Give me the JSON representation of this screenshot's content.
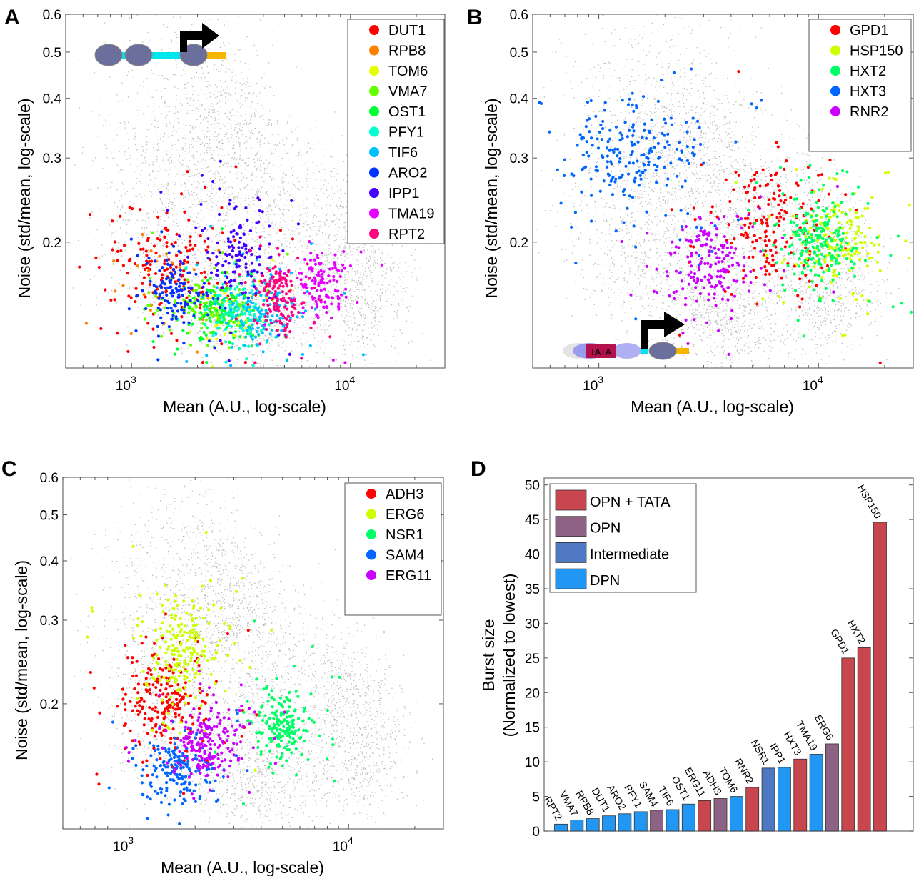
{
  "panels": {
    "A": {
      "letter": "A"
    },
    "B": {
      "letter": "B"
    },
    "C": {
      "letter": "C"
    },
    "D": {
      "letter": "D"
    }
  },
  "chart_data": [
    {
      "id": "A",
      "type": "scatter",
      "xlabel": "Mean (A.U., log-scale)",
      "ylabel": "Noise (std/mean, log-scale)",
      "xscale": "log",
      "yscale": "log",
      "xlim": [
        500,
        27000
      ],
      "ylim": [
        0.109,
        0.6
      ],
      "xticks": [
        {
          "value": 1000,
          "base": "10",
          "exp": "3"
        },
        {
          "value": 10000,
          "base": "10",
          "exp": "4"
        }
      ],
      "yticks": [
        0.2,
        0.3,
        0.4,
        0.5,
        0.6
      ],
      "ytick_labels": [
        "0.2",
        "0.3",
        "0.4",
        "0.5",
        "0.6"
      ],
      "legend_position": "top-right",
      "inset": "promoter-diagram-DPN",
      "background_series": "all-strains (gray)",
      "series": [
        {
          "name": "DUT1",
          "color": "#ff0000",
          "center": [
            1450,
            0.178
          ],
          "spread": [
            0.13,
            0.06
          ],
          "n": 190
        },
        {
          "name": "RPB8",
          "color": "#ff8000",
          "center": [
            1300,
            0.165
          ],
          "spread": [
            0.15,
            0.06
          ],
          "n": 30
        },
        {
          "name": "TOM6",
          "color": "#e6ff00",
          "center": [
            3050,
            0.139
          ],
          "spread": [
            0.07,
            0.03
          ],
          "n": 60
        },
        {
          "name": "VMA7",
          "color": "#66ff00",
          "center": [
            2200,
            0.147
          ],
          "spread": [
            0.1,
            0.03
          ],
          "n": 130
        },
        {
          "name": "OST1",
          "color": "#00ff33",
          "center": [
            2500,
            0.143
          ],
          "spread": [
            0.08,
            0.03
          ],
          "n": 120
        },
        {
          "name": "PFY1",
          "color": "#00ffcc",
          "center": [
            3150,
            0.142
          ],
          "spread": [
            0.06,
            0.025
          ],
          "n": 110
        },
        {
          "name": "TIF6",
          "color": "#00bfff",
          "center": [
            4000,
            0.145
          ],
          "spread": [
            0.09,
            0.035
          ],
          "n": 140
        },
        {
          "name": "ARO2",
          "color": "#0033ff",
          "center": [
            1550,
            0.158
          ],
          "spread": [
            0.06,
            0.03
          ],
          "n": 140
        },
        {
          "name": "IPP1",
          "color": "#4400ff",
          "center": [
            3100,
            0.19
          ],
          "spread": [
            0.08,
            0.05
          ],
          "n": 140
        },
        {
          "name": "TMA19",
          "color": "#e600ff",
          "center": [
            7600,
            0.165
          ],
          "spread": [
            0.06,
            0.035
          ],
          "n": 130
        },
        {
          "name": "RPT2",
          "color": "#ff0080",
          "center": [
            4700,
            0.153
          ],
          "spread": [
            0.05,
            0.035
          ],
          "n": 150
        }
      ]
    },
    {
      "id": "B",
      "type": "scatter",
      "xlabel": "Mean (A.U., log-scale)",
      "ylabel": "Noise (std/mean, log-scale)",
      "xscale": "log",
      "yscale": "log",
      "xlim": [
        500,
        27000
      ],
      "ylim": [
        0.109,
        0.6
      ],
      "xticks": [
        {
          "value": 1000,
          "base": "10",
          "exp": "3"
        },
        {
          "value": 10000,
          "base": "10",
          "exp": "4"
        }
      ],
      "yticks": [
        0.2,
        0.3,
        0.4,
        0.5,
        0.6
      ],
      "ytick_labels": [
        "0.2",
        "0.3",
        "0.4",
        "0.5",
        "0.6"
      ],
      "legend_position": "top-right",
      "inset": "promoter-diagram-OPN-TATA",
      "inset_label": "TATA",
      "series": [
        {
          "name": "GPD1",
          "color": "#ff0000",
          "center": [
            6200,
            0.215
          ],
          "spread": [
            0.12,
            0.07
          ],
          "n": 190
        },
        {
          "name": "HSP150",
          "color": "#ccff00",
          "center": [
            12000,
            0.2
          ],
          "spread": [
            0.09,
            0.05
          ],
          "n": 190
        },
        {
          "name": "HXT2",
          "color": "#00ff66",
          "center": [
            10000,
            0.198
          ],
          "spread": [
            0.08,
            0.045
          ],
          "n": 230
        },
        {
          "name": "HXT3",
          "color": "#0066ff",
          "center": [
            1400,
            0.31
          ],
          "spread": [
            0.15,
            0.06
          ],
          "n": 230
        },
        {
          "name": "RNR2",
          "color": "#cc00ff",
          "center": [
            3300,
            0.18
          ],
          "spread": [
            0.1,
            0.045
          ],
          "n": 190
        }
      ]
    },
    {
      "id": "C",
      "type": "scatter",
      "xlabel": "Mean (A.U., log-scale)",
      "ylabel": "Noise (std/mean, log-scale)",
      "xscale": "log",
      "yscale": "log",
      "xlim": [
        500,
        27000
      ],
      "ylim": [
        0.109,
        0.6
      ],
      "xticks": [
        {
          "value": 1000,
          "base": "10",
          "exp": "3"
        },
        {
          "value": 10000,
          "base": "10",
          "exp": "4"
        }
      ],
      "yticks": [
        0.2,
        0.3,
        0.4,
        0.5,
        0.6
      ],
      "ytick_labels": [
        "0.2",
        "0.3",
        "0.4",
        "0.5",
        "0.6"
      ],
      "legend_position": "top-right",
      "series": [
        {
          "name": "ADH3",
          "color": "#ff0000",
          "center": [
            1450,
            0.198
          ],
          "spread": [
            0.1,
            0.05
          ],
          "n": 230
        },
        {
          "name": "ERG6",
          "color": "#ccff00",
          "center": [
            1700,
            0.262
          ],
          "spread": [
            0.08,
            0.05
          ],
          "n": 220
        },
        {
          "name": "NSR1",
          "color": "#00ff66",
          "center": [
            5000,
            0.18
          ],
          "spread": [
            0.06,
            0.035
          ],
          "n": 200
        },
        {
          "name": "SAM4",
          "color": "#0066ff",
          "center": [
            1650,
            0.145
          ],
          "spread": [
            0.08,
            0.035
          ],
          "n": 190
        },
        {
          "name": "ERG11",
          "color": "#cc00ff",
          "center": [
            2300,
            0.165
          ],
          "spread": [
            0.07,
            0.035
          ],
          "n": 210
        }
      ]
    },
    {
      "id": "D",
      "type": "bar",
      "ylabel_line1": "Burst size",
      "ylabel_line2": "(Normalized to lowest)",
      "xlabel": "",
      "ylim": [
        0,
        51
      ],
      "yticks": [
        0,
        5,
        10,
        15,
        20,
        25,
        30,
        35,
        40,
        45,
        50
      ],
      "legend_position": "top-left",
      "legend": [
        {
          "name": "OPN + TATA",
          "color": "#c8474f"
        },
        {
          "name": "OPN",
          "color": "#8e6285"
        },
        {
          "name": "Intermediate",
          "color": "#4f78c2"
        },
        {
          "name": "DPN",
          "color": "#2196f3"
        }
      ],
      "categories": [
        "RPT2",
        "VMA7",
        "RPB8",
        "DUT1",
        "ARO2",
        "PFY1",
        "SAM4",
        "TIF6",
        "OST1",
        "ERG11",
        "ADH3",
        "TOM6",
        "RNR2",
        "NSR1",
        "IPP1",
        "HXT3",
        "TMA19",
        "ERG6",
        "GPD1",
        "HXT2",
        "HSP150"
      ],
      "values": [
        1.0,
        1.6,
        1.8,
        2.2,
        2.5,
        2.8,
        3.0,
        3.1,
        3.9,
        4.4,
        4.7,
        5.0,
        6.3,
        9.1,
        9.2,
        10.4,
        11.1,
        12.6,
        25.0,
        26.5,
        44.6
      ],
      "groups": [
        "DPN",
        "DPN",
        "DPN",
        "DPN",
        "DPN",
        "DPN",
        "OPN",
        "DPN",
        "DPN",
        "OPN + TATA",
        "OPN",
        "DPN",
        "OPN + TATA",
        "Intermediate",
        "DPN",
        "OPN + TATA",
        "DPN",
        "OPN",
        "OPN + TATA",
        "OPN + TATA",
        "OPN + TATA"
      ]
    }
  ]
}
